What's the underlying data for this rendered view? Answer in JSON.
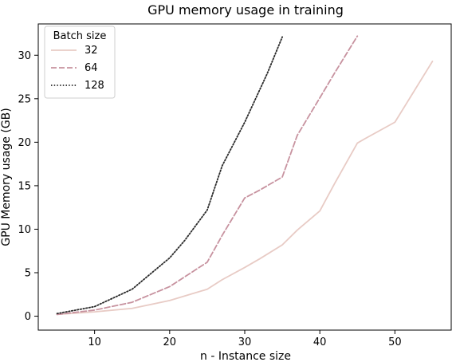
{
  "chart_data": {
    "type": "line",
    "title": "GPU memory usage in training",
    "xlabel": "n - Instance size",
    "ylabel": "GPU Memory usage (GB)",
    "xlim": [
      2.5,
      57.5
    ],
    "ylim": [
      -1.6,
      33.6
    ],
    "xticks": [
      10,
      20,
      30,
      40,
      50
    ],
    "yticks": [
      0,
      5,
      10,
      15,
      20,
      25,
      30
    ],
    "grid": false,
    "legend": {
      "title": "Batch size",
      "placement": "top-left"
    },
    "series": [
      {
        "name": "32",
        "color": "#e8cbc5",
        "style": "solid",
        "x": [
          5,
          10,
          15,
          20,
          25,
          27,
          30,
          32,
          35,
          37,
          40,
          42,
          45,
          46,
          50,
          52,
          55
        ],
        "y": [
          0.2,
          0.5,
          0.9,
          1.8,
          3.1,
          4.2,
          5.6,
          6.6,
          8.2,
          9.9,
          12.1,
          15.3,
          19.9,
          20.4,
          22.3,
          25.1,
          29.3
        ]
      },
      {
        "name": "64",
        "color": "#c7929f",
        "style": "dashed",
        "x": [
          5,
          10,
          15,
          20,
          25,
          27,
          30,
          32,
          34,
          35,
          37,
          40,
          42,
          45
        ],
        "y": [
          0.2,
          0.7,
          1.6,
          3.4,
          6.2,
          9.3,
          13.6,
          14.5,
          15.5,
          16.0,
          20.8,
          25.1,
          28.0,
          32.2
        ]
      },
      {
        "name": "128",
        "color": "#2b2b2b",
        "style": "dotted",
        "x": [
          5,
          10,
          15,
          20,
          22,
          25,
          27,
          30,
          33,
          35
        ],
        "y": [
          0.3,
          1.1,
          3.1,
          6.7,
          8.7,
          12.2,
          17.3,
          22.3,
          27.9,
          32.1
        ]
      }
    ]
  }
}
